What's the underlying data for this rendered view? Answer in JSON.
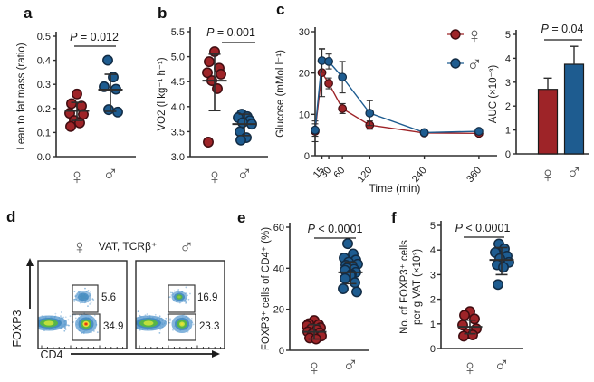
{
  "colors": {
    "female": "#9e2428",
    "female_stroke": "#400d11",
    "male": "#1e5c90",
    "male_stroke": "#122c45",
    "axis": "#2e2e2e",
    "text": "#1c1c1c",
    "sex_symbol": "#555555",
    "flow_blue": "#5b9bd0",
    "flow_mid_blue": "#3f87be",
    "flow_green": "#56b44a",
    "flow_yellow": "#e8df38",
    "flow_yellow_green": "#bfdf3c",
    "flow_orange": "#ef6a1c",
    "flow_red": "#e03014",
    "flow_speckle": "#7fb0d8"
  },
  "chart_data": [
    {
      "id": "a",
      "type": "scatter",
      "letter": "a",
      "p_label": "P = 0.012",
      "ylabel": "Lean to fat mass (ratio)",
      "ylim": [
        0,
        0.5
      ],
      "yticks": [
        0,
        0.1,
        0.2,
        0.3,
        0.4,
        0.5
      ],
      "ytick_labels": [
        "0.0",
        "0.1",
        "0.2",
        "0.3",
        "0.4",
        "0.5"
      ],
      "categories": [
        "♀",
        "♂"
      ],
      "series": [
        {
          "name": "female",
          "symbol": "♀",
          "values": [
            0.26,
            0.22,
            0.21,
            0.18,
            0.175,
            0.15,
            0.14,
            0.125
          ],
          "mean": 0.19,
          "err_lo": 0.15,
          "err_hi": 0.225
        },
        {
          "name": "male",
          "symbol": "♂",
          "values": [
            0.4,
            0.33,
            0.29,
            0.28,
            0.195,
            0.185
          ],
          "mean": 0.278,
          "err_lo": 0.188,
          "err_hi": 0.342
        }
      ]
    },
    {
      "id": "b",
      "type": "scatter",
      "letter": "b",
      "p_label": "P = 0.001",
      "ylabel": "VO2 (l kg⁻¹ h⁻¹)",
      "ylim": [
        3,
        5.5
      ],
      "yticks": [
        3,
        3.5,
        4,
        4.5,
        5,
        5.5
      ],
      "ytick_labels": [
        "3.0",
        "3.5",
        "4.0",
        "4.5",
        "5.0",
        "5.5"
      ],
      "categories": [
        "♀",
        "♂"
      ],
      "series": [
        {
          "name": "female",
          "symbol": "♀",
          "values": [
            5.1,
            4.9,
            4.77,
            4.68,
            4.65,
            4.52,
            4.36,
            3.29
          ],
          "mean": 4.52,
          "err_lo": 3.92,
          "err_hi": 5.05
        },
        {
          "name": "male",
          "symbol": "♂",
          "values": [
            3.85,
            3.8,
            3.78,
            3.72,
            3.68,
            3.65,
            3.5,
            3.38,
            3.33
          ],
          "mean": 3.65,
          "err_lo": 3.42,
          "err_hi": 3.85
        }
      ]
    },
    {
      "id": "c-line",
      "type": "line",
      "letter": "c",
      "xlabel": "Time (min)",
      "ylabel": "Glucose (mMol l⁻¹)",
      "xlim": [
        0,
        400
      ],
      "ylim": [
        0,
        30
      ],
      "xticks": [
        15,
        30,
        60,
        120,
        240,
        360
      ],
      "xtick_labels": [
        "15",
        "30",
        "60",
        "120",
        "240",
        "360"
      ],
      "yticks": [
        0,
        10,
        20,
        30
      ],
      "ytick_labels": [
        "0",
        "10",
        "20",
        "30"
      ],
      "series": [
        {
          "name": "female",
          "symbol": "♀",
          "x": [
            0,
            15,
            30,
            60,
            120,
            240,
            360
          ],
          "y": [
            5.9,
            20.1,
            17.5,
            11.4,
            7.4,
            5.5,
            5.4
          ],
          "err": [
            2.5,
            5.8,
            1.3,
            1.2,
            1.0,
            0.4,
            0.4
          ]
        },
        {
          "name": "male",
          "symbol": "♂",
          "x": [
            0,
            15,
            30,
            60,
            120,
            240,
            360
          ],
          "y": [
            6.2,
            23.0,
            22.8,
            19.0,
            10.3,
            5.6,
            5.9
          ],
          "err": [
            1.5,
            2.8,
            1.8,
            3.8,
            3.0,
            0.4,
            0.5
          ]
        }
      ],
      "legend": [
        {
          "symbol": "♀",
          "series": "female"
        },
        {
          "symbol": "♂",
          "series": "male"
        }
      ],
      "legend_position": "top-right"
    },
    {
      "id": "c-bar",
      "type": "bar",
      "p_label": "P = 0.04",
      "ylabel": "AUC (×10⁻³)",
      "ylim": [
        0,
        5
      ],
      "yticks": [
        0,
        1,
        2,
        3,
        4,
        5
      ],
      "ytick_labels": [
        "0",
        "1",
        "2",
        "3",
        "4",
        "5"
      ],
      "categories": [
        "♀",
        "♂"
      ],
      "series": [
        {
          "name": "female",
          "symbol": "♀",
          "value": 2.7,
          "err_hi": 3.17
        },
        {
          "name": "male",
          "symbol": "♂",
          "value": 3.75,
          "err_hi": 4.5
        }
      ]
    },
    {
      "id": "d",
      "type": "flow",
      "letter": "d",
      "title": "VAT, TCRβ⁺",
      "female_symbol": "♀",
      "male_symbol": "♂",
      "xlabel": "CD4",
      "ylabel": "FOXP3",
      "plots": [
        {
          "name": "female",
          "gates": [
            {
              "label": "5.6"
            },
            {
              "label": "34.9"
            }
          ]
        },
        {
          "name": "male",
          "gates": [
            {
              "label": "16.9"
            },
            {
              "label": "23.3"
            }
          ]
        }
      ]
    },
    {
      "id": "e",
      "type": "scatter",
      "letter": "e",
      "p_label": "P < 0.0001",
      "ylabel": "FOXP3⁺ cells of CD4⁺ (%)",
      "ylim": [
        0,
        60
      ],
      "yticks": [
        0,
        20,
        40,
        60
      ],
      "ytick_labels": [
        "0",
        "20",
        "40",
        "60"
      ],
      "categories": [
        "♀",
        "♂"
      ],
      "series": [
        {
          "name": "female",
          "symbol": "♀",
          "values": [
            14.5,
            13,
            12.5,
            12,
            11,
            10.5,
            10,
            9,
            8.5,
            8,
            7,
            6,
            5.5
          ],
          "mean": 9,
          "err_lo": 5.5,
          "err_hi": 12.5
        },
        {
          "name": "male",
          "symbol": "♂",
          "values": [
            52,
            47,
            45,
            44,
            43,
            42,
            41.5,
            41,
            40,
            39.5,
            39,
            38,
            37,
            36.5,
            35,
            33,
            30,
            28.5
          ],
          "mean": 38,
          "err_lo": 32.5,
          "err_hi": 43
        }
      ]
    },
    {
      "id": "f",
      "type": "scatter",
      "letter": "f",
      "p_label": "P < 0.0001",
      "ylabel_lines": [
        "No. of FOXP3⁺ cells",
        "per g VAT (×10³)"
      ],
      "ylim": [
        0,
        5
      ],
      "yticks": [
        0,
        1,
        2,
        3,
        4,
        5
      ],
      "ytick_labels": [
        "0",
        "1",
        "2",
        "3",
        "4",
        "5"
      ],
      "categories": [
        "♀",
        "♂"
      ],
      "series": [
        {
          "name": "female",
          "symbol": "♀",
          "values": [
            1.5,
            1.35,
            1.2,
            0.95,
            0.8,
            0.6,
            0.55,
            0.5
          ],
          "mean": 0.88,
          "err_lo": 0.6,
          "err_hi": 1.15
        },
        {
          "name": "male",
          "symbol": "♂",
          "values": [
            4.25,
            4.05,
            3.9,
            3.75,
            3.65,
            3.5,
            3.4,
            3.3,
            2.6
          ],
          "mean": 3.6,
          "err_lo": 3.0,
          "err_hi": 4.1
        }
      ]
    }
  ]
}
